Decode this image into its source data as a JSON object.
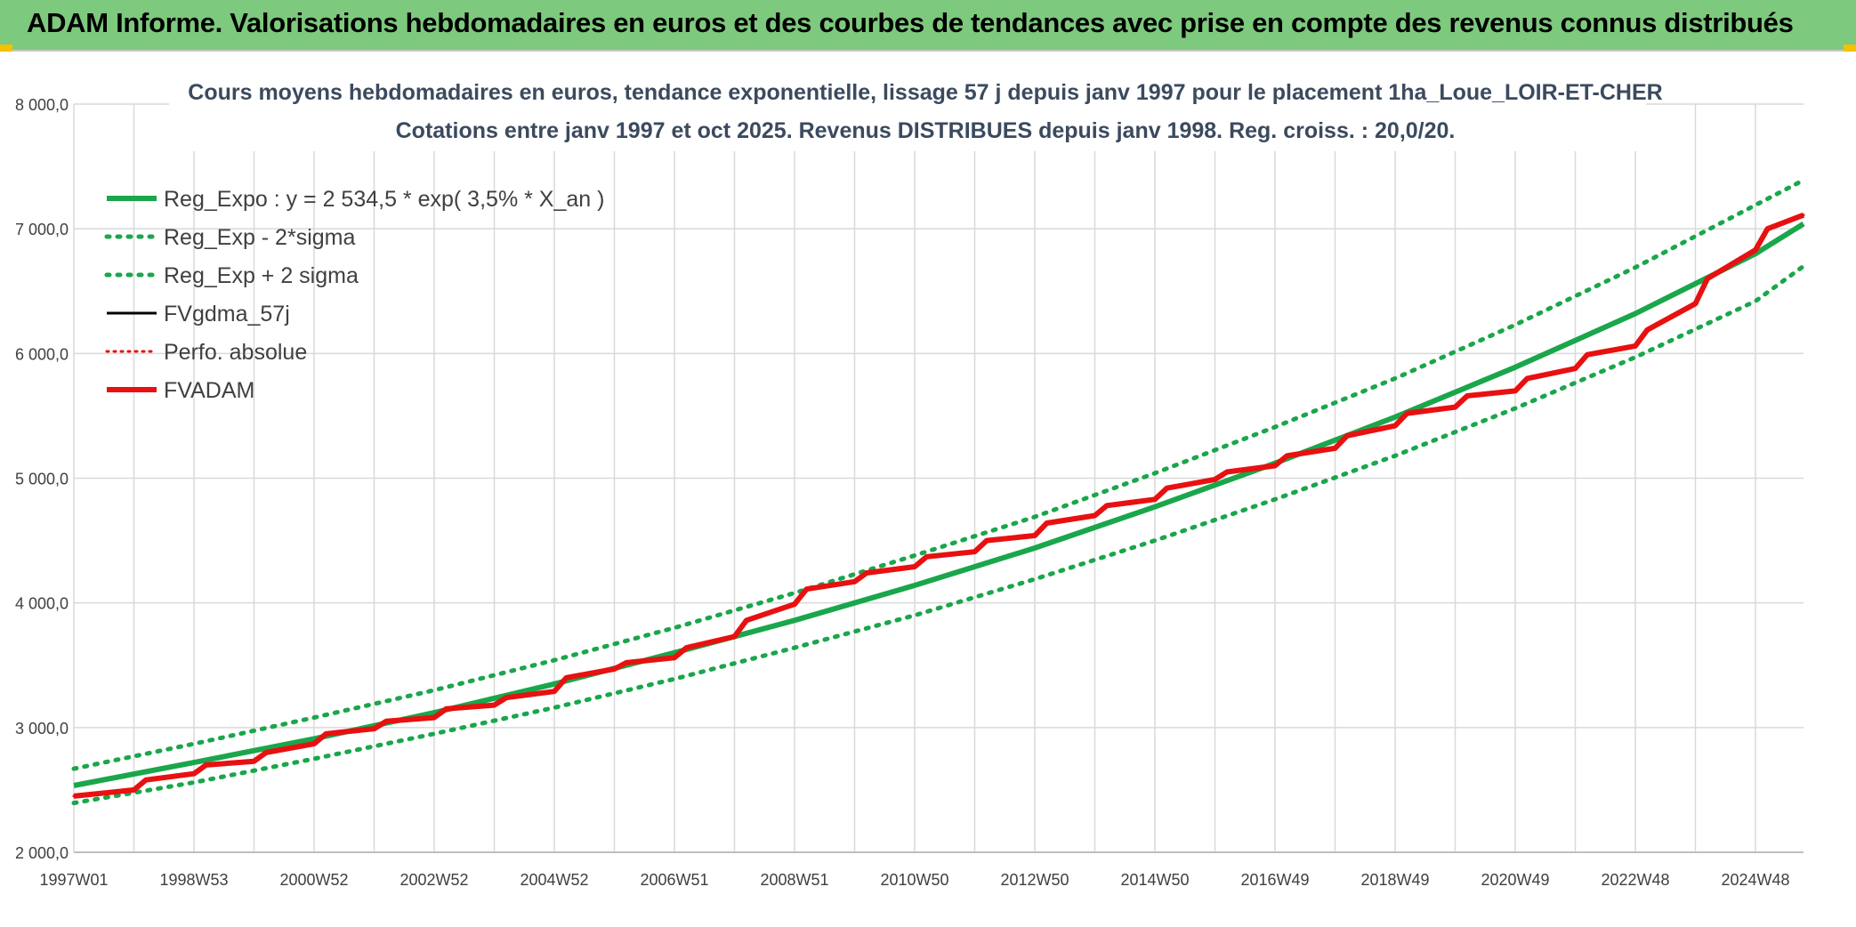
{
  "banner": {
    "title": "ADAM Informe. Valorisations hebdomadaires en euros et des courbes de tendances avec prise en compte des revenus connus distribués"
  },
  "colors": {
    "banner_bg": "#7dc97d",
    "reg_expo": "#1aa64b",
    "fv_gdma": "#000000",
    "perfo": "#e81010",
    "fvadam": "#e81010",
    "grid": "#d9d9d9"
  },
  "chart_data": {
    "type": "line",
    "title_line1": "Cours moyens hebdomadaires en euros, tendance exponentielle, lissage 57 j depuis janv 1997 pour le placement 1ha_Loue_LOIR-ET-CHER",
    "title_line2": "Cotations entre janv 1997 et oct 2025. Revenus DISTRIBUES depuis janv 1998. Reg. croiss. : 20,0/20.",
    "ylim": [
      2000,
      8000
    ],
    "y_ticks": [
      {
        "value": 2000,
        "label": "2 000,0"
      },
      {
        "value": 3000,
        "label": "3 000,0"
      },
      {
        "value": 4000,
        "label": "4 000,0"
      },
      {
        "value": 5000,
        "label": "5 000,0"
      },
      {
        "value": 6000,
        "label": "6 000,0"
      },
      {
        "value": 7000,
        "label": "7 000,0"
      },
      {
        "value": 8000,
        "label": "8 000,0"
      }
    ],
    "xlim": [
      1997.0,
      2025.8
    ],
    "x_ticks": [
      {
        "value": 1997.0,
        "label": "1997W01"
      },
      {
        "value": 1999.0,
        "label": "1998W53"
      },
      {
        "value": 2001.0,
        "label": "2000W52"
      },
      {
        "value": 2003.0,
        "label": "2002W52"
      },
      {
        "value": 2005.0,
        "label": "2004W52"
      },
      {
        "value": 2007.0,
        "label": "2006W51"
      },
      {
        "value": 2009.0,
        "label": "2008W51"
      },
      {
        "value": 2011.0,
        "label": "2010W50"
      },
      {
        "value": 2013.0,
        "label": "2012W50"
      },
      {
        "value": 2015.0,
        "label": "2014W50"
      },
      {
        "value": 2017.0,
        "label": "2016W49"
      },
      {
        "value": 2019.0,
        "label": "2018W49"
      },
      {
        "value": 2021.0,
        "label": "2020W49"
      },
      {
        "value": 2023.0,
        "label": "2022W48"
      },
      {
        "value": 2025.0,
        "label": "2024W48"
      }
    ],
    "legend": {
      "placement": "top-left",
      "entries": [
        {
          "name": "Reg_Expo : y = 2 534,5 * exp( 3,5% *  X_an )",
          "style": "solid-green"
        },
        {
          "name": "Reg_Exp - 2*sigma",
          "style": "dotted-green"
        },
        {
          "name": "Reg_Exp + 2 sigma",
          "style": "dotted-green"
        },
        {
          "name": "FVgdma_57j",
          "style": "solid-black"
        },
        {
          "name": "Perfo. absolue",
          "style": "dotted-red"
        },
        {
          "name": "FVADAM",
          "style": "solid-red"
        }
      ]
    },
    "series": [
      {
        "name": "Reg_Expo : y = 2 534,5 * exp( 3,5% *  X_an )",
        "x": [
          1997,
          1999,
          2001,
          2003,
          2005,
          2007,
          2009,
          2011,
          2013,
          2015,
          2017,
          2019,
          2021,
          2023,
          2025,
          2025.8
        ],
        "values": [
          2535,
          2720,
          2910,
          3120,
          3350,
          3600,
          3860,
          4140,
          4440,
          4770,
          5120,
          5490,
          5890,
          6320,
          6800,
          7040
        ]
      },
      {
        "name": "Reg_Exp - 2*sigma",
        "x": [
          1997,
          1999,
          2001,
          2003,
          2005,
          2007,
          2009,
          2011,
          2013,
          2015,
          2017,
          2019,
          2021,
          2023,
          2025,
          2025.8
        ],
        "values": [
          2395,
          2560,
          2750,
          2950,
          3160,
          3390,
          3640,
          3900,
          4190,
          4500,
          4830,
          5180,
          5560,
          5970,
          6420,
          6700
        ]
      },
      {
        "name": "Reg_Exp + 2 sigma",
        "x": [
          1997,
          1999,
          2001,
          2003,
          2005,
          2007,
          2009,
          2011,
          2013,
          2015,
          2017,
          2019,
          2021,
          2023,
          2025,
          2025.8
        ],
        "values": [
          2670,
          2870,
          3080,
          3300,
          3540,
          3800,
          4080,
          4380,
          4690,
          5040,
          5410,
          5800,
          6230,
          6690,
          7190,
          7390
        ]
      },
      {
        "name": "FVgdma_57j",
        "x": [
          1997.0,
          1998.0,
          1998.2,
          1999.0,
          1999.2,
          2000.0,
          2000.2,
          2001.0,
          2001.2,
          2002.0,
          2002.2,
          2003.0,
          2003.2,
          2004.0,
          2004.2,
          2005.0,
          2005.2,
          2006.0,
          2006.2,
          2007.0,
          2007.2,
          2008.0,
          2008.2,
          2009.0,
          2009.2,
          2010.0,
          2010.2,
          2011.0,
          2011.2,
          2012.0,
          2012.2,
          2013.0,
          2013.2,
          2014.0,
          2014.2,
          2015.0,
          2015.2,
          2016.0,
          2016.2,
          2017.0,
          2017.2,
          2018.0,
          2018.2,
          2019.0,
          2019.2,
          2020.0,
          2020.2,
          2021.0,
          2021.2,
          2022.0,
          2022.2,
          2023.0,
          2023.2,
          2024.0,
          2024.2,
          2025.0,
          2025.2,
          2025.8
        ],
        "values": [
          2450,
          2500,
          2580,
          2630,
          2700,
          2730,
          2800,
          2870,
          2950,
          2990,
          3050,
          3080,
          3150,
          3180,
          3240,
          3290,
          3400,
          3470,
          3520,
          3560,
          3640,
          3730,
          3860,
          3990,
          4110,
          4170,
          4240,
          4290,
          4370,
          4410,
          4500,
          4540,
          4640,
          4700,
          4780,
          4830,
          4920,
          4990,
          5050,
          5100,
          5180,
          5240,
          5340,
          5420,
          5520,
          5570,
          5660,
          5700,
          5800,
          5880,
          5990,
          6060,
          6190,
          6400,
          6600,
          6830,
          7000,
          7110
        ]
      },
      {
        "name": "Perfo. absolue",
        "x": [
          1997.0,
          1998.0,
          1998.2,
          1999.0,
          1999.2,
          2000.0,
          2000.2,
          2001.0,
          2001.2,
          2002.0,
          2002.2,
          2003.0,
          2003.2,
          2004.0,
          2004.2,
          2005.0,
          2005.2,
          2006.0,
          2006.2,
          2007.0,
          2007.2,
          2008.0,
          2008.2,
          2009.0,
          2009.2,
          2010.0,
          2010.2,
          2011.0,
          2011.2,
          2012.0,
          2012.2,
          2013.0,
          2013.2,
          2014.0,
          2014.2,
          2015.0,
          2015.2,
          2016.0,
          2016.2,
          2017.0,
          2017.2,
          2018.0,
          2018.2,
          2019.0,
          2019.2,
          2020.0,
          2020.2,
          2021.0,
          2021.2,
          2022.0,
          2022.2,
          2023.0,
          2023.2,
          2024.0,
          2024.2,
          2025.0,
          2025.2,
          2025.8
        ],
        "values": [
          2450,
          2500,
          2580,
          2630,
          2700,
          2730,
          2800,
          2870,
          2950,
          2990,
          3050,
          3080,
          3150,
          3180,
          3240,
          3290,
          3400,
          3470,
          3520,
          3560,
          3640,
          3730,
          3860,
          3990,
          4110,
          4170,
          4240,
          4290,
          4370,
          4410,
          4500,
          4540,
          4640,
          4700,
          4780,
          4830,
          4920,
          4990,
          5050,
          5100,
          5180,
          5240,
          5340,
          5420,
          5520,
          5570,
          5660,
          5700,
          5800,
          5880,
          5990,
          6060,
          6190,
          6400,
          6600,
          6830,
          7000,
          7110
        ]
      },
      {
        "name": "FVADAM",
        "x": [
          1997.0,
          1998.0,
          1998.2,
          1999.0,
          1999.2,
          2000.0,
          2000.2,
          2001.0,
          2001.2,
          2002.0,
          2002.2,
          2003.0,
          2003.2,
          2004.0,
          2004.2,
          2005.0,
          2005.2,
          2006.0,
          2006.2,
          2007.0,
          2007.2,
          2008.0,
          2008.2,
          2009.0,
          2009.2,
          2010.0,
          2010.2,
          2011.0,
          2011.2,
          2012.0,
          2012.2,
          2013.0,
          2013.2,
          2014.0,
          2014.2,
          2015.0,
          2015.2,
          2016.0,
          2016.2,
          2017.0,
          2017.2,
          2018.0,
          2018.2,
          2019.0,
          2019.2,
          2020.0,
          2020.2,
          2021.0,
          2021.2,
          2022.0,
          2022.2,
          2023.0,
          2023.2,
          2024.0,
          2024.2,
          2025.0,
          2025.2,
          2025.8
        ],
        "values": [
          2450,
          2500,
          2580,
          2630,
          2700,
          2730,
          2800,
          2870,
          2950,
          2990,
          3050,
          3080,
          3150,
          3180,
          3240,
          3290,
          3400,
          3470,
          3520,
          3560,
          3640,
          3730,
          3860,
          3990,
          4110,
          4170,
          4240,
          4290,
          4370,
          4410,
          4500,
          4540,
          4640,
          4700,
          4780,
          4830,
          4920,
          4990,
          5050,
          5100,
          5180,
          5240,
          5340,
          5420,
          5520,
          5570,
          5660,
          5700,
          5800,
          5880,
          5990,
          6060,
          6190,
          6400,
          6600,
          6830,
          7000,
          7110
        ]
      }
    ]
  }
}
